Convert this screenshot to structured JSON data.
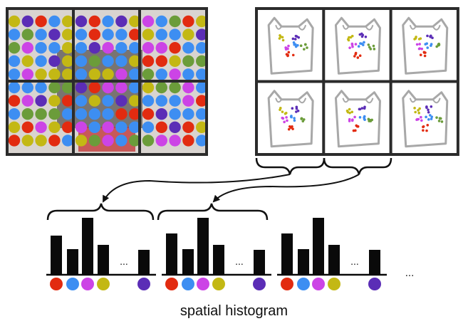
{
  "caption": "spatial histogram",
  "ellipsis": "...",
  "colors": {
    "red": "#e22b10",
    "blue": "#3d8ef2",
    "magenta": "#cc44e6",
    "olive": "#c3b814",
    "purple": "#5b2db6",
    "green": "#6b9c3a",
    "frame": "#2b2b2b",
    "bag": "#a8a8a8"
  },
  "image_grid": {
    "rows": 2,
    "cols": 3
  },
  "bag_grid": {
    "rows": 2,
    "cols": 3
  },
  "histograms": [
    {
      "bin_colors": [
        "red",
        "blue",
        "magenta",
        "olive",
        "purple"
      ],
      "values": [
        55,
        36,
        80,
        42,
        35
      ]
    },
    {
      "bin_colors": [
        "red",
        "blue",
        "magenta",
        "olive",
        "purple"
      ],
      "values": [
        58,
        36,
        80,
        42,
        35
      ]
    },
    {
      "bin_colors": [
        "red",
        "blue",
        "magenta",
        "olive",
        "purple"
      ],
      "values": [
        58,
        36,
        80,
        42,
        35
      ]
    }
  ]
}
